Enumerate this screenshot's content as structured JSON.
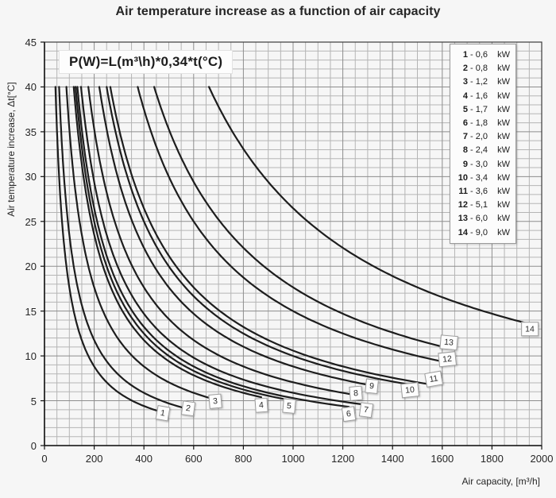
{
  "title": "Air temperature increase as a function of air capacity",
  "formula": "P(W)=L(m³\\h)*0,34*t(°C)",
  "axes": {
    "x_label": "Air capacity, [m³/h]",
    "y_label": "Air temperature increase, Δt[°C]"
  },
  "legend": {
    "separator": "-",
    "items": [
      {
        "num": "1",
        "value": "0,6",
        "unit": "kW"
      },
      {
        "num": "2",
        "value": "0,8",
        "unit": "kW"
      },
      {
        "num": "3",
        "value": "1,2",
        "unit": "kW"
      },
      {
        "num": "4",
        "value": "1,6",
        "unit": "kW"
      },
      {
        "num": "5",
        "value": "1,7",
        "unit": "kW"
      },
      {
        "num": "6",
        "value": "1,8",
        "unit": "kW"
      },
      {
        "num": "7",
        "value": "2,0",
        "unit": "kW"
      },
      {
        "num": "8",
        "value": "2,4",
        "unit": "kW"
      },
      {
        "num": "9",
        "value": "3,0",
        "unit": "kW"
      },
      {
        "num": "10",
        "value": "3,4",
        "unit": "kW"
      },
      {
        "num": "11",
        "value": "3,6",
        "unit": "kW"
      },
      {
        "num": "12",
        "value": "5,1",
        "unit": "kW"
      },
      {
        "num": "13",
        "value": "6,0",
        "unit": "kW"
      },
      {
        "num": "14",
        "value": "9,0",
        "unit": "kW"
      }
    ]
  },
  "colors": {
    "background": "#f6f6f6",
    "curve": "#1d1d1d",
    "grid_minor": "#b5b5b5",
    "grid_major": "#8d8d8d",
    "border": "#3c3c3c",
    "axis": "#141414",
    "text": "#262626",
    "box_bg": "#fdfdfd",
    "box_border": "#9b9b9b"
  },
  "chart_data": {
    "type": "line",
    "title": "Air temperature increase as a function of air capacity",
    "xlabel": "Air capacity, [m³/h]",
    "ylabel": "Air temperature increase, Δt[°C]",
    "xlim": [
      0,
      2000
    ],
    "ylim": [
      0,
      45
    ],
    "x_ticks": [
      0,
      200,
      400,
      600,
      800,
      1000,
      1200,
      1400,
      1600,
      1800,
      2000
    ],
    "y_ticks": [
      0,
      5,
      10,
      15,
      20,
      25,
      30,
      35,
      40,
      45
    ],
    "x_minor_step": 50,
    "y_minor_step": 1,
    "grid": "on",
    "legend_position": "upper right",
    "model": "t(°C) = P(W) / (0.34 · L(m³/h)); each curve drawn from t_start=40°C down to its end capacity end_L",
    "series": [
      {
        "num": "1",
        "power_kW": 0.6,
        "t_start": 40,
        "end_L": 476,
        "label": {
          "L": 476,
          "t": 3.6,
          "rot": 10
        }
      },
      {
        "num": "2",
        "power_kW": 0.8,
        "t_start": 40,
        "end_L": 578,
        "label": {
          "L": 578,
          "t": 4.15,
          "rot": 8
        }
      },
      {
        "num": "3",
        "power_kW": 1.2,
        "t_start": 40,
        "end_L": 688,
        "label": {
          "L": 688,
          "t": 5.0,
          "rot": -5
        }
      },
      {
        "num": "4",
        "power_kW": 1.6,
        "t_start": 40,
        "end_L": 872,
        "label": {
          "L": 872,
          "t": 4.55,
          "rot": -4
        }
      },
      {
        "num": "5",
        "power_kW": 1.7,
        "t_start": 40,
        "end_L": 984,
        "label": {
          "L": 984,
          "t": 4.4,
          "rot": 5
        }
      },
      {
        "num": "6",
        "power_kW": 1.8,
        "t_start": 40,
        "end_L": 1224,
        "label": {
          "L": 1224,
          "t": 3.55,
          "rot": -8
        }
      },
      {
        "num": "7",
        "power_kW": 2.0,
        "t_start": 40,
        "end_L": 1293,
        "label": {
          "L": 1293,
          "t": 4.0,
          "rot": 8
        }
      },
      {
        "num": "8",
        "power_kW": 2.4,
        "t_start": 40,
        "end_L": 1253,
        "label": {
          "L": 1253,
          "t": 5.85,
          "rot": -5
        }
      },
      {
        "num": "9",
        "power_kW": 3.0,
        "t_start": 40,
        "end_L": 1315,
        "label": {
          "L": 1315,
          "t": 6.65,
          "rot": 6
        }
      },
      {
        "num": "10",
        "power_kW": 3.4,
        "t_start": 40,
        "end_L": 1470,
        "label": {
          "L": 1470,
          "t": 6.2,
          "rot": -6
        }
      },
      {
        "num": "11",
        "power_kW": 3.6,
        "t_start": 40,
        "end_L": 1566,
        "label": {
          "L": 1566,
          "t": 7.45,
          "rot": -10
        }
      },
      {
        "num": "12",
        "power_kW": 5.1,
        "t_start": 40,
        "end_L": 1621,
        "label": {
          "L": 1621,
          "t": 9.65,
          "rot": -6
        }
      },
      {
        "num": "13",
        "power_kW": 6.0,
        "t_start": 40,
        "end_L": 1627,
        "label": {
          "L": 1627,
          "t": 11.5,
          "rot": 5
        }
      },
      {
        "num": "14",
        "power_kW": 9.0,
        "t_start": 40,
        "end_L": 1985,
        "label": {
          "L": 1952,
          "t": 13.0,
          "rot": 0
        }
      }
    ]
  }
}
